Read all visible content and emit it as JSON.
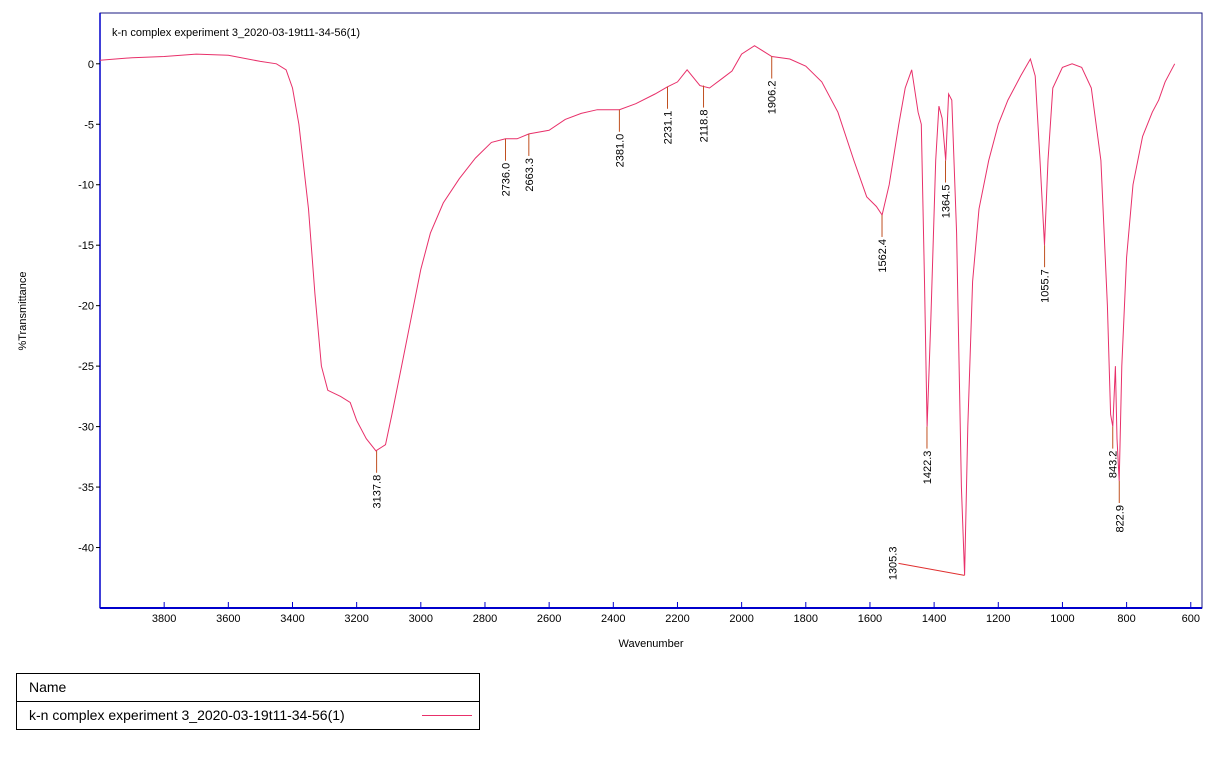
{
  "chart_data": {
    "type": "line",
    "title": "k-n complex experiment 3_2020-03-19t11-34-56(1)",
    "x_label": "Wavenumber",
    "y_label": "%Transmittance",
    "xlim": [
      4000,
      565
    ],
    "ylim": [
      -45,
      4.2
    ],
    "x_reversed": true,
    "xticks": [
      3800,
      3600,
      3400,
      3200,
      3000,
      2800,
      2600,
      2400,
      2200,
      2000,
      1800,
      1600,
      1400,
      1200,
      1000,
      800,
      600
    ],
    "yticks": [
      0,
      -5,
      -10,
      -15,
      -20,
      -25,
      -30,
      -35,
      -40
    ],
    "grid": false,
    "legend_title": "Name",
    "series": [
      {
        "name": "k-n complex experiment 3_2020-03-19t11-34-56(1)",
        "color": "#e8306a",
        "x": [
          4000,
          3900,
          3800,
          3700,
          3600,
          3500,
          3450,
          3420,
          3400,
          3380,
          3350,
          3330,
          3310,
          3290,
          3250,
          3220,
          3200,
          3170,
          3140,
          3110,
          3090,
          3060,
          3030,
          3000,
          2970,
          2930,
          2880,
          2830,
          2780,
          2736,
          2700,
          2663,
          2600,
          2550,
          2500,
          2450,
          2381,
          2330,
          2270,
          2231,
          2200,
          2170,
          2130,
          2100,
          2060,
          2030,
          2000,
          1960,
          1906,
          1850,
          1800,
          1750,
          1700,
          1650,
          1610,
          1580,
          1562,
          1540,
          1510,
          1490,
          1470,
          1450,
          1440,
          1430,
          1422,
          1410,
          1395,
          1385,
          1375,
          1364,
          1355,
          1345,
          1330,
          1315,
          1305,
          1295,
          1280,
          1260,
          1230,
          1200,
          1170,
          1130,
          1100,
          1085,
          1070,
          1056,
          1045,
          1030,
          1000,
          970,
          940,
          910,
          880,
          860,
          850,
          843,
          835,
          830,
          823,
          815,
          800,
          780,
          750,
          720,
          700,
          680,
          660,
          650
        ],
        "values": [
          0.3,
          0.5,
          0.6,
          0.8,
          0.7,
          0.2,
          0,
          -0.5,
          -2,
          -5,
          -12,
          -19,
          -25,
          -27,
          -27.5,
          -28,
          -29.5,
          -31,
          -32,
          -31.5,
          -29,
          -25,
          -21,
          -17,
          -14,
          -11.5,
          -9.5,
          -7.8,
          -6.5,
          -6.2,
          -6.2,
          -5.8,
          -5.5,
          -4.6,
          -4.1,
          -3.8,
          -3.8,
          -3.3,
          -2.5,
          -1.9,
          -1.5,
          -0.5,
          -1.8,
          -2,
          -1.2,
          -0.6,
          0.8,
          1.5,
          0.6,
          0.4,
          -0.2,
          -1.5,
          -4,
          -8,
          -11,
          -11.8,
          -12.5,
          -10,
          -5,
          -2,
          -0.5,
          -4,
          -5,
          -18,
          -30,
          -21,
          -8,
          -3.5,
          -4.5,
          -8,
          -2.5,
          -3,
          -14,
          -35,
          -42.3,
          -30,
          -18,
          -12,
          -8,
          -5,
          -3,
          -1,
          0.4,
          -1,
          -8,
          -15,
          -8,
          -2,
          -0.3,
          0,
          -0.3,
          -2,
          -8,
          -20,
          -29,
          -30,
          -25,
          -31,
          -34.5,
          -25,
          -16,
          -10,
          -6,
          -4,
          -3,
          -1.5,
          -0.5,
          0
        ]
      }
    ],
    "peaks": [
      {
        "label": "3137.8",
        "x": 3137.8,
        "y": -32
      },
      {
        "label": "2736.0",
        "x": 2736.0,
        "y": -6.2
      },
      {
        "label": "2663.3",
        "x": 2663.3,
        "y": -5.8
      },
      {
        "label": "2381.0",
        "x": 2381.0,
        "y": -3.8
      },
      {
        "label": "2231.1",
        "x": 2231.1,
        "y": -1.9
      },
      {
        "label": "2118.8",
        "x": 2118.8,
        "y": -1.8
      },
      {
        "label": "1906.2",
        "x": 1906.2,
        "y": 0.6
      },
      {
        "label": "1562.4",
        "x": 1562.4,
        "y": -12.5
      },
      {
        "label": "1422.3",
        "x": 1422.3,
        "y": -30
      },
      {
        "label": "1364.5",
        "x": 1364.5,
        "y": -8
      },
      {
        "label": "1305.3",
        "x": 1305.3,
        "y": -42.3
      },
      {
        "label": "1055.7",
        "x": 1055.7,
        "y": -15
      },
      {
        "label": "843.2",
        "x": 843.2,
        "y": -30
      },
      {
        "label": "822.9",
        "x": 822.9,
        "y": -34.5
      }
    ]
  }
}
